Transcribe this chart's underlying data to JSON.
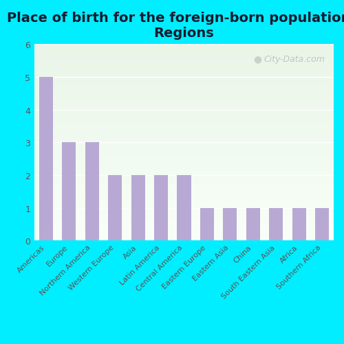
{
  "title": "Place of birth for the foreign-born population -\nRegions",
  "categories": [
    "Americas",
    "Europe",
    "Northern America",
    "Western Europe",
    "Asia",
    "Latin America",
    "Central America",
    "Eastern Europe",
    "Eastern Asia",
    "China",
    "South Eastern Asia",
    "Africa",
    "Southern Africa"
  ],
  "values": [
    5,
    3,
    3,
    2,
    2,
    2,
    2,
    1,
    1,
    1,
    1,
    1,
    1
  ],
  "bar_color": "#b8a9d4",
  "background_outer": "#00eeff",
  "background_chart_top": "#eaf5e8",
  "background_chart_bottom": "#f8fdf4",
  "grid_color": "#ffffff",
  "title_fontsize": 14,
  "tick_fontsize": 8,
  "ytick_fontsize": 9,
  "ylim": [
    0,
    6
  ],
  "yticks": [
    0,
    1,
    2,
    3,
    4,
    5,
    6
  ],
  "watermark": "City-Data.com",
  "title_color": "#1a1a2e",
  "tick_color": "#555555"
}
